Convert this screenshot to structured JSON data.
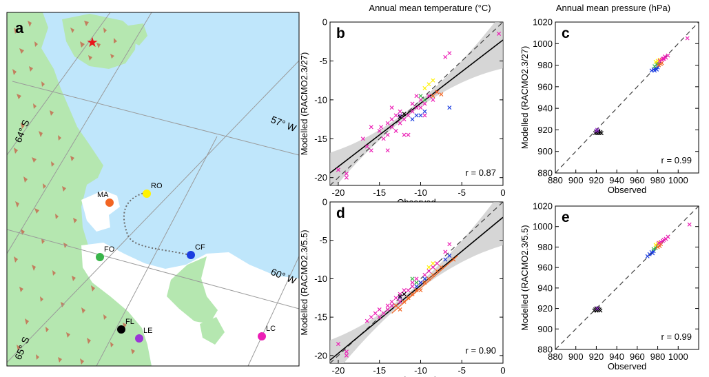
{
  "colors": {
    "sea": "#bfe6fb",
    "land": "#b5e7b0",
    "rock": "#c27f5e",
    "ice": "#ffffff",
    "star": "#e8141b",
    "route": "#6b6b6b",
    "grid": "#9a9a9a",
    "fit": "#000000",
    "band": "#c8c8c8",
    "one_to_one": "#404040"
  },
  "map": {
    "panel_label": "a",
    "lat_labels": [
      "64° S",
      "65° S"
    ],
    "lon_labels": [
      "57° W",
      "60° W"
    ],
    "stations": [
      {
        "code": "MA",
        "color": "#f26522"
      },
      {
        "code": "RO",
        "color": "#fff200"
      },
      {
        "code": "FO",
        "color": "#39b54a"
      },
      {
        "code": "CF",
        "color": "#1b3de0"
      },
      {
        "code": "FL",
        "color": "#000000"
      },
      {
        "code": "LE",
        "color": "#9b36d6"
      },
      {
        "code": "LC",
        "color": "#ec1fb5"
      }
    ],
    "star_symbol": "★"
  },
  "column_titles": [
    "Annual mean temperature (°C)",
    "Annual mean pressure (hPa)"
  ],
  "chart_data": [
    {
      "type": "scatter",
      "panel": "b",
      "xlabel": "Observed",
      "ylabel": "Modelled (RACMO2.3/27)",
      "xlim": [
        -21,
        0
      ],
      "ylim": [
        -21,
        0
      ],
      "xticks": [
        "-20",
        "-15",
        "-10",
        "-5",
        "0"
      ],
      "yticks": [
        "0",
        "-5",
        "-10",
        "-15",
        "-20"
      ],
      "annotation": "r = 0.87",
      "fit_lines": [
        {
          "color": "#000000",
          "x": [
            -21,
            0
          ],
          "y": [
            -19.4,
            -2.3
          ]
        }
      ],
      "band": true,
      "points": [
        {
          "color": "#ec1fb5",
          "xy": [
            [
              -20,
              -19
            ],
            [
              -19,
              -19.5
            ],
            [
              -19,
              -20
            ],
            [
              -17,
              -15
            ],
            [
              -16.5,
              -16
            ],
            [
              -16,
              -16.5
            ],
            [
              -16,
              -13.5
            ],
            [
              -15,
              -14
            ],
            [
              -14.8,
              -13.5
            ],
            [
              -14.5,
              -15
            ],
            [
              -14,
              -14.5
            ],
            [
              -14,
              -13
            ],
            [
              -13.5,
              -11
            ],
            [
              -13.5,
              -12.5
            ],
            [
              -13,
              -14
            ],
            [
              -13,
              -12
            ],
            [
              -12.5,
              -13
            ],
            [
              -12.5,
              -11.5
            ],
            [
              -12,
              -12.5
            ],
            [
              -12,
              -14.5
            ],
            [
              -11.5,
              -12
            ],
            [
              -11,
              -11.5
            ],
            [
              -11,
              -10.5
            ],
            [
              -10.5,
              -11
            ],
            [
              -10.5,
              -9.5
            ],
            [
              -10,
              -11
            ],
            [
              -10,
              -10
            ],
            [
              -9.5,
              -10.5
            ],
            [
              -9.5,
              -12
            ],
            [
              -9,
              -9.5
            ],
            [
              -8.5,
              -10
            ],
            [
              -8,
              -9
            ],
            [
              -7,
              -4.5
            ],
            [
              -6.5,
              -4
            ],
            [
              -0.5,
              -1.5
            ],
            [
              -13.5,
              -13.5
            ],
            [
              -14,
              -16.5
            ],
            [
              -11.5,
              -14.5
            ]
          ]
        },
        {
          "color": "#1b3de0",
          "xy": [
            [
              -10.5,
              -12
            ],
            [
              -10,
              -12
            ],
            [
              -9.5,
              -11.5
            ],
            [
              -6.5,
              -11
            ],
            [
              -11,
              -12.5
            ]
          ]
        },
        {
          "color": "#fff200",
          "xy": [
            [
              -9,
              -8
            ],
            [
              -8.5,
              -7.5
            ],
            [
              -9.5,
              -8.5
            ]
          ]
        },
        {
          "color": "#39b54a",
          "xy": [
            [
              -10,
              -9.5
            ],
            [
              -9.5,
              -10
            ]
          ]
        },
        {
          "color": "#f26522",
          "xy": [
            [
              -8.5,
              -9.5
            ],
            [
              -8,
              -9
            ],
            [
              -7.5,
              -9.3
            ]
          ]
        },
        {
          "color": "#9b36d6",
          "xy": [
            [
              -12.5,
              -12
            ]
          ]
        },
        {
          "color": "#000000",
          "xy": [
            [
              -12.5,
              -12.2
            ],
            [
              -12,
              -11.8
            ]
          ]
        }
      ]
    },
    {
      "type": "scatter",
      "panel": "c",
      "xlabel": "Observed",
      "ylabel": "Modelled (RACMO2.3/27)",
      "xlim": [
        880,
        1020
      ],
      "ylim": [
        880,
        1020
      ],
      "xticks": [
        "880",
        "900",
        "920",
        "940",
        "960",
        "980",
        "1000"
      ],
      "yticks": [
        "1020",
        "1000",
        "980",
        "960",
        "940",
        "920",
        "900",
        "880"
      ],
      "annotation": "r = 0.99",
      "fit_lines": [],
      "band": false,
      "points": [
        {
          "color": "#000000",
          "xy": [
            [
              919,
              917
            ],
            [
              920,
              918
            ],
            [
              921,
              917
            ],
            [
              922,
              918
            ],
            [
              923,
              917
            ],
            [
              924,
              918
            ],
            [
              925,
              917
            ],
            [
              920,
              919
            ],
            [
              922,
              919
            ]
          ]
        },
        {
          "color": "#9b36d6",
          "xy": [
            [
              920,
              919
            ],
            [
              921,
              920
            ]
          ]
        },
        {
          "color": "#1b3de0",
          "xy": [
            [
              974,
              975
            ],
            [
              976,
              976
            ],
            [
              977,
              975
            ],
            [
              978,
              977
            ],
            [
              979,
              976
            ],
            [
              980,
              978
            ]
          ]
        },
        {
          "color": "#39b54a",
          "xy": [
            [
              977,
              979
            ],
            [
              979,
              981
            ],
            [
              980,
              982
            ]
          ]
        },
        {
          "color": "#fff200",
          "xy": [
            [
              978,
              983
            ],
            [
              980,
              984
            ],
            [
              982,
              985
            ]
          ]
        },
        {
          "color": "#f26522",
          "xy": [
            [
              981,
              980
            ],
            [
              983,
              981
            ],
            [
              984,
              982
            ]
          ]
        },
        {
          "color": "#ec1fb5",
          "xy": [
            [
              982,
              984
            ],
            [
              984,
              985
            ],
            [
              985,
              986
            ],
            [
              986,
              986
            ],
            [
              987,
              988
            ],
            [
              988,
              987
            ],
            [
              990,
              989
            ],
            [
              1009,
              1005
            ]
          ]
        }
      ]
    },
    {
      "type": "scatter",
      "panel": "d",
      "xlabel": "Observed",
      "ylabel": "Modelled (RACMO2.3/5.5)",
      "xlim": [
        -21,
        0
      ],
      "ylim": [
        -21,
        0
      ],
      "xticks": [
        "-20",
        "-15",
        "-10",
        "-5",
        "0"
      ],
      "yticks": [
        "0",
        "-5",
        "-10",
        "-15",
        "-20"
      ],
      "annotation": "r = 0.90",
      "fit_lines": [
        {
          "color": "#000000",
          "x": [
            -21,
            0
          ],
          "y": [
            -20.6,
            -2.0
          ]
        },
        {
          "color": "#f26522",
          "x": [
            -13.5,
            -5.5
          ],
          "y": [
            -14.5,
            -7.0
          ]
        }
      ],
      "band": true,
      "points": [
        {
          "color": "#ec1fb5",
          "xy": [
            [
              -20,
              -18.5
            ],
            [
              -19,
              -19.5
            ],
            [
              -19,
              -20
            ],
            [
              -16.5,
              -15.5
            ],
            [
              -16,
              -15
            ],
            [
              -15.5,
              -14.5
            ],
            [
              -15,
              -14
            ],
            [
              -14.5,
              -14.5
            ],
            [
              -14,
              -13.5
            ],
            [
              -14,
              -14
            ],
            [
              -13.5,
              -13
            ],
            [
              -13,
              -12.5
            ],
            [
              -13,
              -13.5
            ],
            [
              -12.5,
              -13
            ],
            [
              -12,
              -12
            ],
            [
              -12,
              -11.5
            ],
            [
              -11.5,
              -11.5
            ],
            [
              -11,
              -11
            ],
            [
              -11,
              -10.5
            ],
            [
              -10.5,
              -10
            ],
            [
              -10,
              -10.5
            ],
            [
              -9.5,
              -9.5
            ],
            [
              -9,
              -9
            ],
            [
              -8.5,
              -8.5
            ],
            [
              -8,
              -8
            ],
            [
              -7,
              -6.5
            ],
            [
              -6.5,
              -5.5
            ],
            [
              -15,
              -15
            ],
            [
              -13.5,
              -13.5
            ],
            [
              -12.5,
              -12
            ]
          ]
        },
        {
          "color": "#1b3de0",
          "xy": [
            [
              -10.5,
              -11
            ],
            [
              -10,
              -10.5
            ],
            [
              -9.5,
              -10
            ],
            [
              -7,
              -7.5
            ],
            [
              -6.5,
              -7
            ]
          ]
        },
        {
          "color": "#fff200",
          "xy": [
            [
              -9,
              -8.5
            ],
            [
              -8.5,
              -8
            ]
          ]
        },
        {
          "color": "#39b54a",
          "xy": [
            [
              -11,
              -10
            ],
            [
              -10.5,
              -10.5
            ]
          ]
        },
        {
          "color": "#f26522",
          "xy": [
            [
              -13,
              -13.5
            ],
            [
              -12.5,
              -14
            ],
            [
              -12,
              -13
            ],
            [
              -11.5,
              -12.5
            ],
            [
              -11,
              -12
            ],
            [
              -10.5,
              -11.5
            ],
            [
              -10,
              -11.5
            ],
            [
              -9.5,
              -10.5
            ],
            [
              -9,
              -10
            ],
            [
              -8.5,
              -9.5
            ],
            [
              -8,
              -9
            ],
            [
              -7.5,
              -8.5
            ],
            [
              -6,
              -7.5
            ]
          ]
        },
        {
          "color": "#9b36d6",
          "xy": [
            [
              -12.5,
              -12.5
            ]
          ]
        },
        {
          "color": "#000000",
          "xy": [
            [
              -12.5,
              -12.3
            ],
            [
              -12,
              -12
            ]
          ]
        }
      ]
    },
    {
      "type": "scatter",
      "panel": "e",
      "xlabel": "Observed",
      "ylabel": "Modelled (RACMO2.3/5.5)",
      "xlim": [
        880,
        1020
      ],
      "ylim": [
        880,
        1020
      ],
      "xticks": [
        "880",
        "900",
        "920",
        "940",
        "960",
        "980",
        "1000"
      ],
      "yticks": [
        "1020",
        "1000",
        "980",
        "960",
        "940",
        "920",
        "900",
        "880"
      ],
      "annotation": "r = 0.99",
      "fit_lines": [],
      "band": false,
      "points": [
        {
          "color": "#000000",
          "xy": [
            [
              918,
              918
            ],
            [
              919,
              919
            ],
            [
              920,
              918
            ],
            [
              921,
              919
            ],
            [
              922,
              920
            ],
            [
              923,
              919
            ],
            [
              924,
              918
            ],
            [
              920,
              920
            ]
          ]
        },
        {
          "color": "#9b36d6",
          "xy": [
            [
              921,
              920
            ]
          ]
        },
        {
          "color": "#1b3de0",
          "xy": [
            [
              970,
              971
            ],
            [
              972,
              973
            ],
            [
              974,
              975
            ],
            [
              975,
              974
            ],
            [
              976,
              976
            ]
          ]
        },
        {
          "color": "#39b54a",
          "xy": [
            [
              976,
              978
            ],
            [
              978,
              979
            ],
            [
              979,
              981
            ]
          ]
        },
        {
          "color": "#fff200",
          "xy": [
            [
              978,
              982
            ],
            [
              980,
              983
            ],
            [
              982,
              984
            ]
          ]
        },
        {
          "color": "#f26522",
          "xy": [
            [
              980,
              980
            ],
            [
              982,
              981
            ],
            [
              983,
              983
            ]
          ]
        },
        {
          "color": "#ec1fb5",
          "xy": [
            [
              981,
              984
            ],
            [
              983,
              985
            ],
            [
              985,
              986
            ],
            [
              986,
              987
            ],
            [
              988,
              988
            ],
            [
              990,
              990
            ],
            [
              1011,
              1002
            ]
          ]
        }
      ]
    }
  ]
}
